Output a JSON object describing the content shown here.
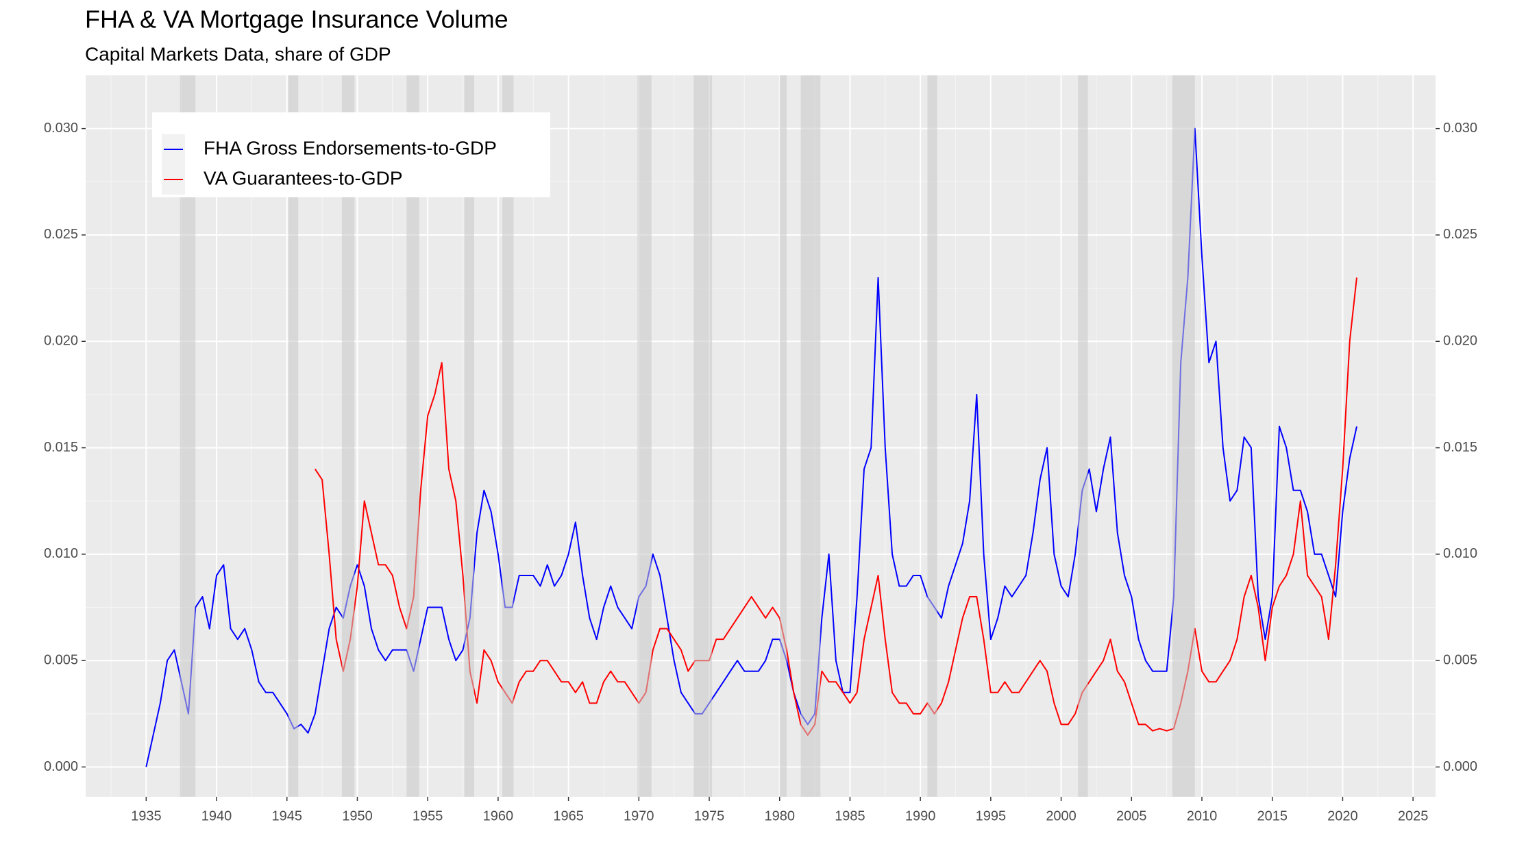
{
  "chart_data": {
    "type": "line",
    "title": "FHA & VA Mortgage Insurance Volume",
    "subtitle": "Capital Markets Data, share of GDP",
    "x": [
      1935,
      1935.5,
      1936,
      1936.5,
      1937,
      1937.5,
      1938,
      1938.5,
      1939,
      1939.5,
      1940,
      1940.5,
      1941,
      1941.5,
      1942,
      1942.5,
      1943,
      1943.5,
      1944,
      1944.5,
      1945,
      1945.5,
      1946,
      1946.5,
      1947,
      1947.5,
      1948,
      1948.5,
      1949,
      1949.5,
      1950,
      1950.5,
      1951,
      1951.5,
      1952,
      1952.5,
      1953,
      1953.5,
      1954,
      1954.5,
      1955,
      1955.5,
      1956,
      1956.5,
      1957,
      1957.5,
      1958,
      1958.5,
      1959,
      1959.5,
      1960,
      1960.5,
      1961,
      1961.5,
      1962,
      1962.5,
      1963,
      1963.5,
      1964,
      1964.5,
      1965,
      1965.5,
      1966,
      1966.5,
      1967,
      1967.5,
      1968,
      1968.5,
      1969,
      1969.5,
      1970,
      1970.5,
      1971,
      1971.5,
      1972,
      1972.5,
      1973,
      1973.5,
      1974,
      1974.5,
      1975,
      1975.5,
      1976,
      1976.5,
      1977,
      1977.5,
      1978,
      1978.5,
      1979,
      1979.5,
      1980,
      1980.5,
      1981,
      1981.5,
      1982,
      1982.5,
      1983,
      1983.5,
      1984,
      1984.5,
      1985,
      1985.5,
      1986,
      1986.5,
      1987,
      1987.5,
      1988,
      1988.5,
      1989,
      1989.5,
      1990,
      1990.5,
      1991,
      1991.5,
      1992,
      1992.5,
      1993,
      1993.5,
      1994,
      1994.5,
      1995,
      1995.5,
      1996,
      1996.5,
      1997,
      1997.5,
      1998,
      1998.5,
      1999,
      1999.5,
      2000,
      2000.5,
      2001,
      2001.5,
      2002,
      2002.5,
      2003,
      2003.5,
      2004,
      2004.5,
      2005,
      2005.5,
      2006,
      2006.5,
      2007,
      2007.5,
      2008,
      2008.5,
      2009,
      2009.5,
      2010,
      2010.5,
      2011,
      2011.5,
      2012,
      2012.5,
      2013,
      2013.5,
      2014,
      2014.5,
      2015,
      2015.5,
      2016,
      2016.5,
      2017,
      2017.5,
      2018,
      2018.5,
      2019,
      2019.5,
      2020,
      2020.5,
      2021
    ],
    "series": [
      {
        "name": "FHA Gross Endorsements-to-GDP",
        "color": "#0000ff",
        "values": [
          0.0,
          0.0015,
          0.003,
          0.005,
          0.0055,
          0.004,
          0.0025,
          0.0075,
          0.008,
          0.0065,
          0.009,
          0.0095,
          0.0065,
          0.006,
          0.0065,
          0.0055,
          0.004,
          0.0035,
          0.0035,
          0.003,
          0.0025,
          0.0018,
          0.002,
          0.0016,
          0.0025,
          0.0045,
          0.0065,
          0.0075,
          0.007,
          0.0085,
          0.0095,
          0.0085,
          0.0065,
          0.0055,
          0.005,
          0.0055,
          0.0055,
          0.0055,
          0.0045,
          0.006,
          0.0075,
          0.0075,
          0.0075,
          0.006,
          0.005,
          0.0055,
          0.007,
          0.011,
          0.013,
          0.012,
          0.01,
          0.0075,
          0.0075,
          0.009,
          0.009,
          0.009,
          0.0085,
          0.0095,
          0.0085,
          0.009,
          0.01,
          0.0115,
          0.009,
          0.007,
          0.006,
          0.0075,
          0.0085,
          0.0075,
          0.007,
          0.0065,
          0.008,
          0.0085,
          0.01,
          0.009,
          0.007,
          0.005,
          0.0035,
          0.003,
          0.0025,
          0.0025,
          0.003,
          0.0035,
          0.004,
          0.0045,
          0.005,
          0.0045,
          0.0045,
          0.0045,
          0.005,
          0.006,
          0.006,
          0.005,
          0.0035,
          0.0025,
          0.002,
          0.0025,
          0.007,
          0.01,
          0.005,
          0.0035,
          0.0035,
          0.008,
          0.014,
          0.015,
          0.023,
          0.015,
          0.01,
          0.0085,
          0.0085,
          0.009,
          0.009,
          0.008,
          0.0075,
          0.007,
          0.0085,
          0.0095,
          0.0105,
          0.0125,
          0.0175,
          0.01,
          0.006,
          0.007,
          0.0085,
          0.008,
          0.0085,
          0.009,
          0.011,
          0.0135,
          0.015,
          0.01,
          0.0085,
          0.008,
          0.01,
          0.013,
          0.014,
          0.012,
          0.014,
          0.0155,
          0.011,
          0.009,
          0.008,
          0.006,
          0.005,
          0.0045,
          0.0045,
          0.0045,
          0.008,
          0.019,
          0.023,
          0.03,
          0.024,
          0.019,
          0.02,
          0.015,
          0.0125,
          0.013,
          0.0155,
          0.015,
          0.008,
          0.006,
          0.008,
          0.016,
          0.015,
          0.013,
          0.013,
          0.012,
          0.01,
          0.01,
          0.009,
          0.008,
          0.012,
          0.0145,
          0.016
        ]
      },
      {
        "name": "VA Guarantees-to-GDP",
        "color": "#ff0000",
        "values": [
          null,
          null,
          null,
          null,
          null,
          null,
          null,
          null,
          null,
          null,
          null,
          null,
          null,
          null,
          null,
          null,
          null,
          null,
          null,
          null,
          null,
          null,
          null,
          null,
          0.014,
          0.0135,
          0.01,
          0.006,
          0.0045,
          0.006,
          0.0085,
          0.0125,
          0.011,
          0.0095,
          0.0095,
          0.009,
          0.0075,
          0.0065,
          0.008,
          0.013,
          0.0165,
          0.0175,
          0.019,
          0.014,
          0.0125,
          0.009,
          0.0045,
          0.003,
          0.0055,
          0.005,
          0.004,
          0.0035,
          0.003,
          0.004,
          0.0045,
          0.0045,
          0.005,
          0.005,
          0.0045,
          0.004,
          0.004,
          0.0035,
          0.004,
          0.003,
          0.003,
          0.004,
          0.0045,
          0.004,
          0.004,
          0.0035,
          0.003,
          0.0035,
          0.0055,
          0.0065,
          0.0065,
          0.006,
          0.0055,
          0.0045,
          0.005,
          0.005,
          0.005,
          0.006,
          0.006,
          0.0065,
          0.007,
          0.0075,
          0.008,
          0.0075,
          0.007,
          0.0075,
          0.007,
          0.0055,
          0.0035,
          0.002,
          0.0015,
          0.002,
          0.0045,
          0.004,
          0.004,
          0.0035,
          0.003,
          0.0035,
          0.006,
          0.0075,
          0.009,
          0.006,
          0.0035,
          0.003,
          0.003,
          0.0025,
          0.0025,
          0.003,
          0.0025,
          0.003,
          0.004,
          0.0055,
          0.007,
          0.008,
          0.008,
          0.006,
          0.0035,
          0.0035,
          0.004,
          0.0035,
          0.0035,
          0.004,
          0.0045,
          0.005,
          0.0045,
          0.003,
          0.002,
          0.002,
          0.0025,
          0.0035,
          0.004,
          0.0045,
          0.005,
          0.006,
          0.0045,
          0.004,
          0.003,
          0.002,
          0.002,
          0.0017,
          0.0018,
          0.0017,
          0.0018,
          0.003,
          0.0045,
          0.0065,
          0.0045,
          0.004,
          0.004,
          0.0045,
          0.005,
          0.006,
          0.008,
          0.009,
          0.0075,
          0.005,
          0.0075,
          0.0085,
          0.009,
          0.01,
          0.0125,
          0.009,
          0.0085,
          0.008,
          0.006,
          0.0095,
          0.014,
          0.02,
          0.023
        ]
      }
    ],
    "recessions": [
      [
        1937.4,
        1938.5
      ],
      [
        1945.1,
        1945.8
      ],
      [
        1948.9,
        1949.8
      ],
      [
        1953.5,
        1954.4
      ],
      [
        1957.6,
        1958.3
      ],
      [
        1960.3,
        1961.1
      ],
      [
        1969.9,
        1970.9
      ],
      [
        1973.9,
        1975.2
      ],
      [
        1980.0,
        1980.5
      ],
      [
        1981.5,
        1982.9
      ],
      [
        1990.5,
        1991.2
      ],
      [
        2001.2,
        2001.9
      ],
      [
        2007.9,
        2009.5
      ]
    ],
    "xlim": [
      1930.7,
      2026.6
    ],
    "ylim": [
      -0.0014,
      0.0325
    ],
    "xticks": [
      1935,
      1940,
      1945,
      1950,
      1955,
      1960,
      1965,
      1970,
      1975,
      1980,
      1985,
      1990,
      1995,
      2000,
      2005,
      2010,
      2015,
      2020,
      2025
    ],
    "yticks": [
      {
        "value": 0,
        "label": "0.000"
      },
      {
        "value": 0.005,
        "label": "0.005"
      },
      {
        "value": 0.01,
        "label": "0.010"
      },
      {
        "value": 0.015,
        "label": "0.015"
      },
      {
        "value": 0.02,
        "label": "0.020"
      },
      {
        "value": 0.025,
        "label": "0.025"
      },
      {
        "value": 0.03,
        "label": "0.030"
      }
    ],
    "grid": true,
    "secondary_axis": true,
    "legend_position": "top-left"
  }
}
